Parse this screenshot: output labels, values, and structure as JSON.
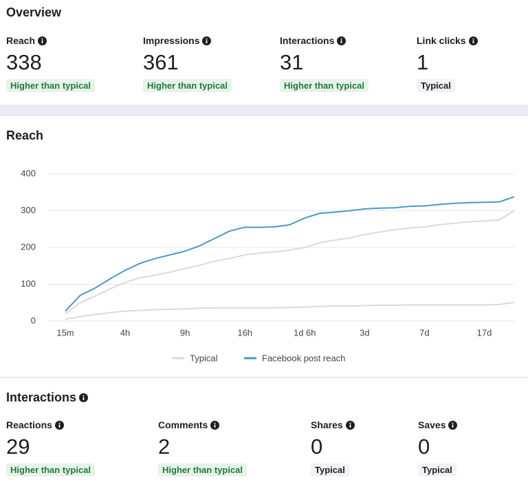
{
  "overview": {
    "title": "Overview",
    "metrics": [
      {
        "label": "Reach",
        "value": 338,
        "badge": "Higher than typical"
      },
      {
        "label": "Impressions",
        "value": 361,
        "badge": "Higher than typical"
      },
      {
        "label": "Interactions",
        "value": 31,
        "badge": "Higher than typical"
      },
      {
        "label": "Link clicks",
        "value": 1,
        "badge": "Typical"
      }
    ]
  },
  "chart_data": {
    "type": "line",
    "title": "Reach",
    "categories": [
      "15m",
      null,
      null,
      null,
      "4h",
      null,
      null,
      null,
      "9h",
      null,
      null,
      null,
      "16h",
      null,
      null,
      null,
      "1d 6h",
      null,
      null,
      null,
      "3d",
      null,
      null,
      null,
      "7d",
      null,
      null,
      null,
      "17d",
      null,
      null
    ],
    "series": [
      {
        "name": "Typical",
        "color": "#d9dadd",
        "values": [
          20,
          50,
          68,
          88,
          105,
          118,
          125,
          133,
          143,
          152,
          163,
          170,
          180,
          185,
          188,
          193,
          200,
          213,
          220,
          226,
          235,
          242,
          248,
          253,
          256,
          262,
          266,
          270,
          272,
          275,
          300
        ],
        "low": [
          5,
          12,
          18,
          23,
          27,
          29,
          31,
          32,
          33,
          35,
          36,
          36,
          36,
          36,
          36,
          37,
          38,
          40,
          41,
          41,
          42,
          43,
          43,
          44,
          44,
          44,
          44,
          44,
          44,
          45,
          51
        ]
      },
      {
        "name": "Facebook post reach",
        "color": "#4a98c9",
        "values": [
          27,
          70,
          90,
          115,
          138,
          157,
          170,
          180,
          190,
          205,
          225,
          245,
          255,
          255,
          256,
          262,
          280,
          293,
          296,
          300,
          305,
          307,
          308,
          312,
          313,
          317,
          320,
          322,
          323,
          324,
          338
        ]
      }
    ],
    "ylim": [
      0,
      400
    ],
    "yticks": [
      0,
      100,
      200,
      300,
      400
    ],
    "grid": true
  },
  "interactions": {
    "title": "Interactions",
    "metrics": [
      {
        "label": "Reactions",
        "value": 29,
        "badge": "Higher than typical"
      },
      {
        "label": "Comments",
        "value": 2,
        "badge": "Higher than typical"
      },
      {
        "label": "Shares",
        "value": 0,
        "badge": "Typical"
      },
      {
        "label": "Saves",
        "value": 0,
        "badge": "Typical"
      }
    ]
  }
}
